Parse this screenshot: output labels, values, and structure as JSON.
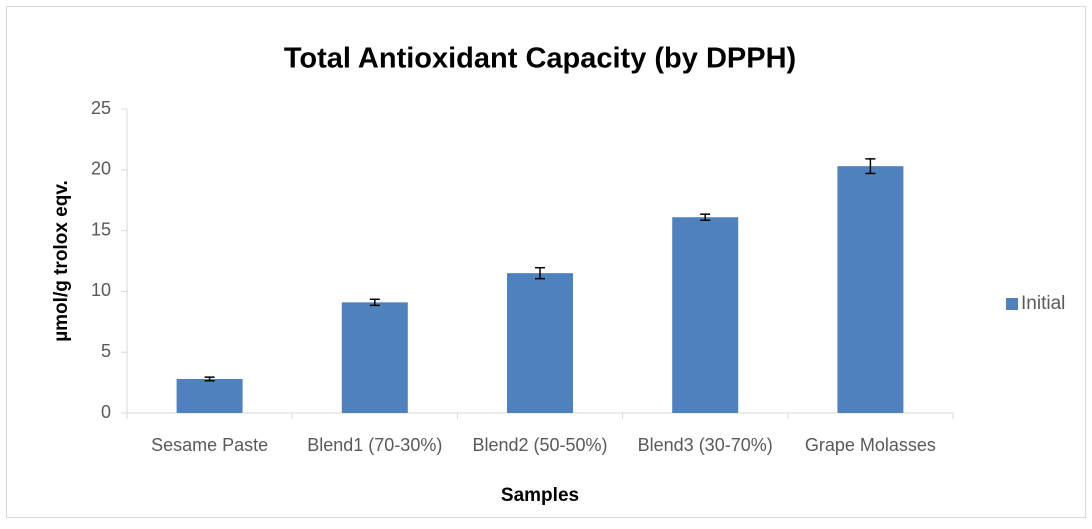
{
  "chart_data": {
    "type": "bar",
    "title": "Total Antioxidant Capacity (by DPPH)",
    "x_label": "Samples",
    "y_label": "µmol/g  trolox eqv.",
    "categories": [
      "Sesame Paste",
      "Blend1 (70-30%)",
      "Blend2 (50-50%)",
      "Blend3 (30-70%)",
      "Grape Molasses"
    ],
    "series": [
      {
        "name": "Initial",
        "color": "#4f81bd",
        "values": [
          2.8,
          9.1,
          11.5,
          16.1,
          20.3
        ],
        "errors": [
          0.15,
          0.25,
          0.45,
          0.25,
          0.6
        ]
      }
    ],
    "ylim": [
      0,
      25
    ],
    "yticks": [
      0,
      5,
      10,
      15,
      20,
      25
    ],
    "grid": false,
    "legend": "right"
  }
}
